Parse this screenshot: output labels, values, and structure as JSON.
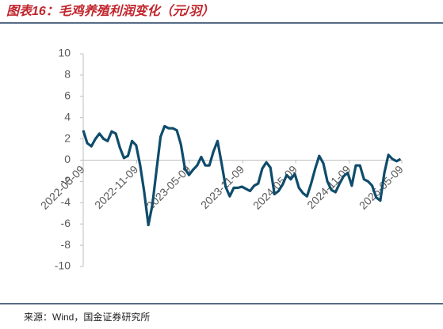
{
  "chart_data": {
    "type": "line",
    "title": "图表16：毛鸡养殖利润变化（元/羽）",
    "source": "来源：Wind，国金证券研究所",
    "x": [
      "2022-05-09",
      "2022-05-23",
      "2022-06-06",
      "2022-06-20",
      "2022-07-04",
      "2022-07-18",
      "2022-08-01",
      "2022-08-15",
      "2022-08-29",
      "2022-09-12",
      "2022-09-26",
      "2022-10-10",
      "2022-10-24",
      "2022-11-07",
      "2022-11-21",
      "2022-12-05",
      "2022-12-19",
      "2023-01-02",
      "2023-01-16",
      "2023-01-30",
      "2023-02-13",
      "2023-02-27",
      "2023-03-13",
      "2023-03-27",
      "2023-04-10",
      "2023-04-24",
      "2023-05-08",
      "2023-05-22",
      "2023-06-05",
      "2023-06-19",
      "2023-07-03",
      "2023-07-17",
      "2023-07-31",
      "2023-08-14",
      "2023-08-28",
      "2023-09-11",
      "2023-09-25",
      "2023-10-09",
      "2023-10-23",
      "2023-11-06",
      "2023-11-20",
      "2023-12-04",
      "2023-12-18",
      "2024-01-01",
      "2024-01-15",
      "2024-01-29",
      "2024-02-12",
      "2024-02-26",
      "2024-03-11",
      "2024-03-25",
      "2024-04-08",
      "2024-04-22",
      "2024-05-06",
      "2024-05-20",
      "2024-06-03",
      "2024-06-17",
      "2024-07-01",
      "2024-07-15",
      "2024-07-29",
      "2024-08-12",
      "2024-08-26",
      "2024-09-09",
      "2024-09-23",
      "2024-10-07",
      "2024-10-21",
      "2024-11-04",
      "2024-11-18",
      "2024-12-02",
      "2024-12-16",
      "2024-12-30",
      "2025-01-13",
      "2025-01-27",
      "2025-02-10",
      "2025-02-24",
      "2025-03-10",
      "2025-03-24",
      "2025-04-07",
      "2025-04-21",
      "2025-05-05"
    ],
    "series": [
      {
        "name": "毛鸡养殖利润",
        "color": "#0f4c6b",
        "values": [
          2.8,
          1.6,
          1.3,
          2.0,
          2.5,
          2.0,
          1.8,
          2.7,
          2.5,
          1.2,
          0.2,
          0.4,
          1.8,
          1.4,
          -0.5,
          -3,
          -6.1,
          -4.2,
          -1,
          2.2,
          3.2,
          3,
          3,
          2.8,
          1.5,
          -0.8,
          -1.4,
          -0.9,
          -0.5,
          0.3,
          -0.5,
          -0.5,
          0.8,
          1.8,
          -0.3,
          -2.5,
          -3.4,
          -2.6,
          -2.6,
          -2.5,
          -2.7,
          -2.9,
          -2.4,
          -2.2,
          -0.8,
          -0.2,
          -0.7,
          -3.2,
          -2.9,
          -2.3,
          -1.4,
          -1.8,
          -1.3,
          -2.6,
          -3.1,
          -3.4,
          -2.2,
          -0.8,
          0.4,
          -0.3,
          -2.0,
          -2.8,
          -3.0,
          -2.2,
          -1.5,
          -1.2,
          -2.4,
          -0.5,
          -0.5,
          -1.8,
          -2.0,
          -2.4,
          -3.5,
          -3.8,
          -1.2,
          0.5,
          0.1,
          -0.1,
          0.1
        ]
      }
    ],
    "xlim": [
      "2022-05-09",
      "2025-05-09"
    ],
    "xticks": [
      "2022-05-09",
      "2022-11-09",
      "2023-05-09",
      "2023-11-09",
      "2024-05-09",
      "2024-11-09",
      "2025-05-09"
    ],
    "ylim": [
      -10,
      10
    ],
    "yticks": [
      -10,
      -8,
      -6,
      -4,
      -2,
      0,
      2,
      4,
      6,
      8,
      10
    ]
  }
}
